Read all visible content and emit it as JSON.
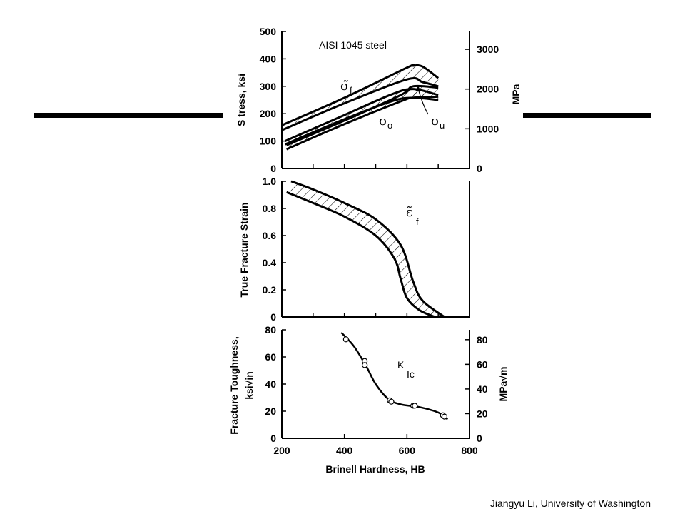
{
  "credit": "Jiangyu Li, University of Washington",
  "chart_data": [
    {
      "type": "line",
      "panel": "stress",
      "title": "AISI  1045  steel",
      "xlabel": "",
      "ylabel": "S tress, ksi",
      "ylabel_right": "MPa",
      "xlim": [
        200,
        800
      ],
      "ylim": [
        0,
        500
      ],
      "ylim_right": [
        0,
        3450
      ],
      "yticks": [
        0,
        100,
        200,
        300,
        400,
        500
      ],
      "yticks_right": [
        0,
        1000,
        2000,
        3000
      ],
      "annotations": {
        "sigma_f": "σ̃ f",
        "sigma_o": "σ o",
        "sigma_u": "σ u"
      },
      "series": [
        {
          "name": "σ̃ f",
          "label_symbol": "σ̃",
          "label_sub": "f",
          "upper": {
            "x": [
              200,
              400,
              600,
              620,
              650,
              700
            ],
            "y": [
              158,
              258,
              368,
              375,
              372,
              330
            ]
          },
          "lower": {
            "x": [
              200,
              400,
              600,
              650,
              700
            ],
            "y": [
              140,
              238,
              325,
              315,
              300
            ]
          }
        },
        {
          "name": "σ o",
          "label_symbol": "σ",
          "label_sub": "o",
          "upper": {
            "x": [
              210,
              400,
              550,
              620,
              700
            ],
            "y": [
              100,
              195,
              270,
              290,
              268
            ]
          },
          "lower": {
            "x": [
              210,
              400,
              550,
              620,
              700
            ],
            "y": [
              88,
              180,
              245,
              258,
              250
            ]
          }
        },
        {
          "name": "σ u",
          "label_symbol": "σ",
          "label_sub": "u",
          "upper": {
            "x": [
              215,
              400,
              580,
              620,
              700
            ],
            "y": [
              85,
              175,
              268,
              300,
              295
            ]
          },
          "lower": {
            "x": [
              215,
              400,
              580,
              620,
              700
            ],
            "y": [
              70,
              162,
              245,
              258,
              262
            ]
          }
        }
      ]
    },
    {
      "type": "area",
      "panel": "strain",
      "xlabel": "",
      "ylabel": "True Fracture Strain",
      "xlim": [
        200,
        800
      ],
      "ylim": [
        0,
        1.0
      ],
      "yticks": [
        0,
        0.2,
        0.4,
        0.6,
        0.8,
        1.0
      ],
      "ytick_labels": [
        "0",
        "0.2",
        "0.4",
        "0.6",
        "0.8",
        "1.0"
      ],
      "annotation": {
        "symbol": "ε̃",
        "sub": "f"
      },
      "band": {
        "upper": {
          "x": [
            230,
            300,
            400,
            500,
            580,
            620,
            650,
            720
          ],
          "y": [
            1.0,
            0.94,
            0.84,
            0.72,
            0.53,
            0.26,
            0.12,
            0.0
          ]
        },
        "lower": {
          "x": [
            215,
            300,
            400,
            500,
            560,
            580,
            600,
            640,
            690
          ],
          "y": [
            0.92,
            0.84,
            0.74,
            0.6,
            0.43,
            0.28,
            0.14,
            0.05,
            0.0
          ]
        }
      }
    },
    {
      "type": "scatter",
      "panel": "toughness",
      "xlabel": "Brinell Hardness,   HB",
      "ylabel": "Fracture  Toughness,",
      "ylabel_unit": "ksi√in",
      "ylabel_right": "MPa√m",
      "xlim": [
        200,
        800
      ],
      "ylim": [
        0,
        80
      ],
      "ylim_right": [
        0,
        88
      ],
      "xticks": [
        200,
        400,
        600,
        800
      ],
      "yticks": [
        0,
        20,
        40,
        60,
        80
      ],
      "yticks_right": [
        0,
        20,
        40,
        60,
        80
      ],
      "annotation": {
        "main": "K",
        "sub": "Ic"
      },
      "points": {
        "x": [
          405,
          465,
          465,
          545,
          550,
          620,
          625,
          715,
          720
        ],
        "y": [
          73,
          57,
          54,
          28,
          27,
          24,
          24,
          17,
          16
        ]
      },
      "curve": {
        "x": [
          390,
          430,
          470,
          500,
          540,
          580,
          640,
          700,
          730
        ],
        "y": [
          78,
          68,
          53,
          40,
          29,
          25,
          23,
          19,
          14
        ]
      }
    }
  ]
}
